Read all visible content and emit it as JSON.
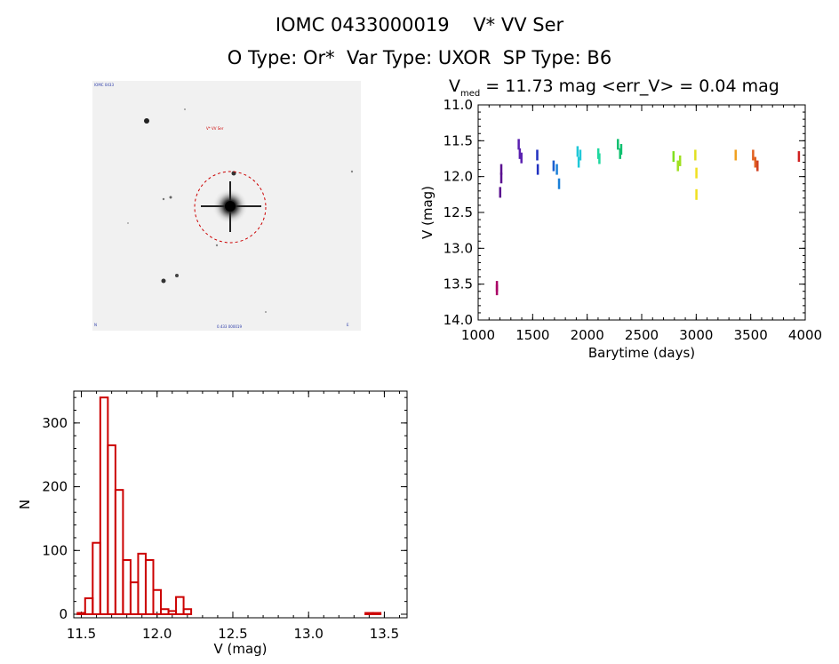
{
  "header": {
    "title_line1": "IOMC 0433000019    V* VV Ser",
    "title_line2": "O Type: Or*  Var Type: UXOR  SP Type: B6"
  },
  "image": {
    "target_label": "V* VV Ser",
    "corner_top_left": "IOMC 0433",
    "corner_bottom_left": "N",
    "corner_bottom_center": "0.433 000019",
    "corner_bottom_right": "E"
  },
  "chart_data": [
    {
      "type": "scatter",
      "title_main": "V",
      "title_sub": "med",
      "title_rest": " = 11.73 mag <err_V> = 0.04 mag",
      "xlabel": "Barytime (days)",
      "ylabel": "V (mag)",
      "xlim": [
        1000,
        4000
      ],
      "ylim": [
        14.0,
        11.0
      ],
      "x_ticks": [
        1000,
        1500,
        2000,
        2500,
        3000,
        3500,
        4000
      ],
      "y_ticks": [
        "11.0",
        "11.5",
        "12.0",
        "12.5",
        "13.0",
        "13.5",
        "14.0"
      ],
      "points": [
        {
          "x": 1170,
          "y": 13.53,
          "color": "#aa0066"
        },
        {
          "x": 1170,
          "y": 13.58,
          "color": "#aa0066"
        },
        {
          "x": 1200,
          "y": 12.22,
          "color": "#5a1090"
        },
        {
          "x": 1210,
          "y": 11.9,
          "color": "#5a1090"
        },
        {
          "x": 1210,
          "y": 12.02,
          "color": "#5a1090"
        },
        {
          "x": 1370,
          "y": 11.55,
          "color": "#5a20b0"
        },
        {
          "x": 1380,
          "y": 11.68,
          "color": "#5a20b0"
        },
        {
          "x": 1395,
          "y": 11.74,
          "color": "#5a20b0"
        },
        {
          "x": 1540,
          "y": 11.7,
          "color": "#2030c0"
        },
        {
          "x": 1545,
          "y": 11.9,
          "color": "#2030c0"
        },
        {
          "x": 1690,
          "y": 11.85,
          "color": "#1a5fd0"
        },
        {
          "x": 1720,
          "y": 11.9,
          "color": "#1a80d8"
        },
        {
          "x": 1740,
          "y": 12.1,
          "color": "#1a80d8"
        },
        {
          "x": 1910,
          "y": 11.65,
          "color": "#20c8d8"
        },
        {
          "x": 1920,
          "y": 11.8,
          "color": "#20c8d8"
        },
        {
          "x": 1935,
          "y": 11.7,
          "color": "#20c8d8"
        },
        {
          "x": 2100,
          "y": 11.68,
          "color": "#20d8a0"
        },
        {
          "x": 2110,
          "y": 11.75,
          "color": "#20d8a0"
        },
        {
          "x": 2280,
          "y": 11.55,
          "color": "#10c070"
        },
        {
          "x": 2300,
          "y": 11.68,
          "color": "#10c070"
        },
        {
          "x": 2310,
          "y": 11.62,
          "color": "#10c070"
        },
        {
          "x": 2790,
          "y": 11.72,
          "color": "#80e020"
        },
        {
          "x": 2830,
          "y": 11.85,
          "color": "#a0e020"
        },
        {
          "x": 2850,
          "y": 11.78,
          "color": "#a0e020"
        },
        {
          "x": 2990,
          "y": 11.7,
          "color": "#e0e020"
        },
        {
          "x": 3000,
          "y": 11.95,
          "color": "#f0e020"
        },
        {
          "x": 3000,
          "y": 12.25,
          "color": "#f0e020"
        },
        {
          "x": 3360,
          "y": 11.7,
          "color": "#f0a020"
        },
        {
          "x": 3520,
          "y": 11.7,
          "color": "#e06020"
        },
        {
          "x": 3540,
          "y": 11.8,
          "color": "#e06020"
        },
        {
          "x": 3560,
          "y": 11.85,
          "color": "#d04020"
        },
        {
          "x": 3940,
          "y": 11.72,
          "color": "#d02020"
        }
      ]
    },
    {
      "type": "bar",
      "xlabel": "V (mag)",
      "ylabel": "N",
      "xlim": [
        11.45,
        13.65
      ],
      "ylim": [
        0,
        350
      ],
      "x_ticks": [
        "11.5",
        "12.0",
        "12.5",
        "13.0",
        "13.5"
      ],
      "y_ticks": [
        0,
        100,
        200,
        300
      ],
      "bin_width": 0.05,
      "bins": [
        {
          "start": 11.475,
          "count": 2
        },
        {
          "start": 11.525,
          "count": 25
        },
        {
          "start": 11.575,
          "count": 112
        },
        {
          "start": 11.625,
          "count": 340
        },
        {
          "start": 11.675,
          "count": 265
        },
        {
          "start": 11.725,
          "count": 195
        },
        {
          "start": 11.775,
          "count": 85
        },
        {
          "start": 11.825,
          "count": 50
        },
        {
          "start": 11.875,
          "count": 95
        },
        {
          "start": 11.925,
          "count": 85
        },
        {
          "start": 11.975,
          "count": 38
        },
        {
          "start": 12.025,
          "count": 8
        },
        {
          "start": 12.075,
          "count": 5
        },
        {
          "start": 12.125,
          "count": 27
        },
        {
          "start": 12.175,
          "count": 8
        },
        {
          "start": 12.225,
          "count": 0
        },
        {
          "start": 13.375,
          "count": 2
        },
        {
          "start": 13.425,
          "count": 2
        }
      ],
      "bar_color": "#cc0000"
    }
  ]
}
